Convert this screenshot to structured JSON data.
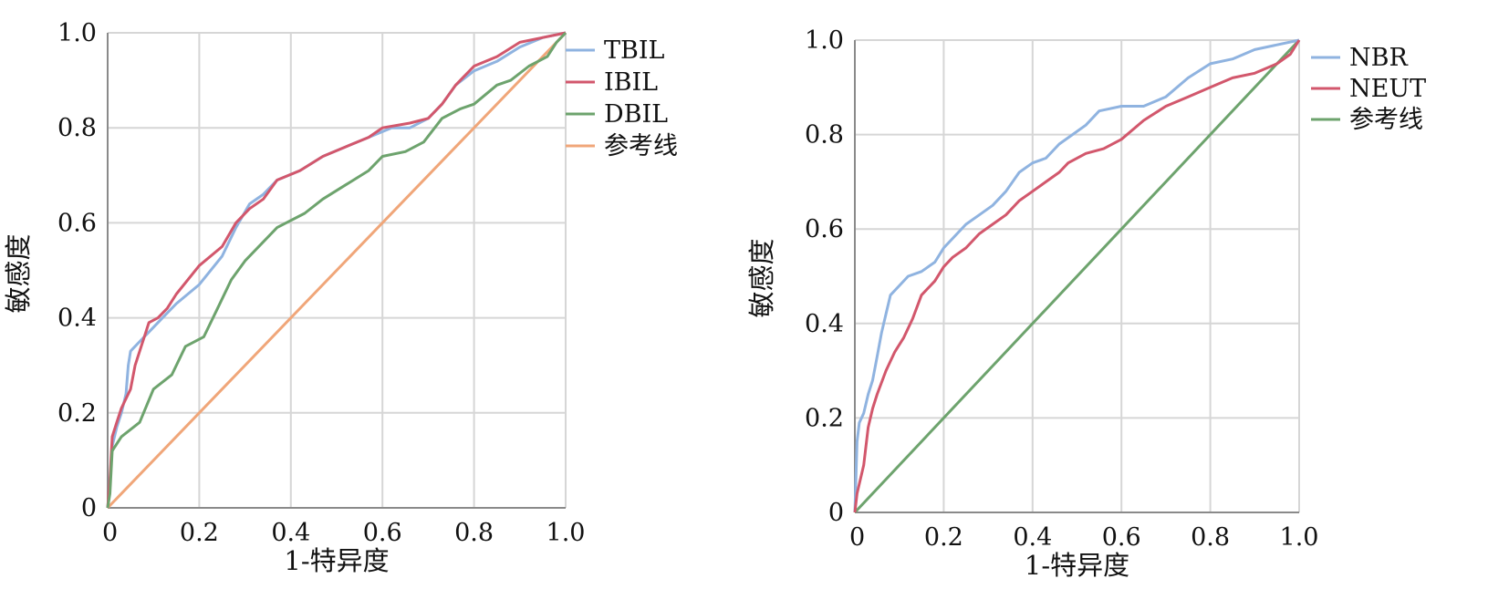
{
  "chart_data": [
    {
      "type": "line",
      "xlabel": "1-特异度",
      "ylabel": "敏感度",
      "xlim": [
        0,
        1
      ],
      "ylim": [
        0,
        1
      ],
      "x_ticks": [
        "0",
        "0.2",
        "0.4",
        "0.6",
        "0.8",
        "1.0"
      ],
      "y_ticks": [
        "0",
        "0.2",
        "0.4",
        "0.6",
        "0.8",
        "1.0"
      ],
      "grid": true,
      "legend_position": "right",
      "series": [
        {
          "name": "TBIL",
          "color": "#8fb3e0",
          "points": [
            [
              0,
              0
            ],
            [
              0.005,
              0.05
            ],
            [
              0.01,
              0.13
            ],
            [
              0.02,
              0.17
            ],
            [
              0.03,
              0.2
            ],
            [
              0.04,
              0.24
            ],
            [
              0.045,
              0.3
            ],
            [
              0.05,
              0.33
            ],
            [
              0.07,
              0.35
            ],
            [
              0.09,
              0.37
            ],
            [
              0.12,
              0.4
            ],
            [
              0.15,
              0.43
            ],
            [
              0.2,
              0.47
            ],
            [
              0.25,
              0.53
            ],
            [
              0.28,
              0.59
            ],
            [
              0.31,
              0.64
            ],
            [
              0.34,
              0.66
            ],
            [
              0.37,
              0.69
            ],
            [
              0.42,
              0.71
            ],
            [
              0.47,
              0.74
            ],
            [
              0.52,
              0.76
            ],
            [
              0.57,
              0.78
            ],
            [
              0.62,
              0.8
            ],
            [
              0.66,
              0.8
            ],
            [
              0.7,
              0.82
            ],
            [
              0.73,
              0.85
            ],
            [
              0.76,
              0.89
            ],
            [
              0.8,
              0.92
            ],
            [
              0.85,
              0.94
            ],
            [
              0.9,
              0.97
            ],
            [
              0.95,
              0.99
            ],
            [
              1,
              1
            ]
          ]
        },
        {
          "name": "IBIL",
          "color": "#d2576c",
          "points": [
            [
              0,
              0
            ],
            [
              0.005,
              0.06
            ],
            [
              0.01,
              0.15
            ],
            [
              0.02,
              0.18
            ],
            [
              0.03,
              0.21
            ],
            [
              0.05,
              0.25
            ],
            [
              0.06,
              0.3
            ],
            [
              0.08,
              0.36
            ],
            [
              0.09,
              0.39
            ],
            [
              0.11,
              0.4
            ],
            [
              0.13,
              0.42
            ],
            [
              0.15,
              0.45
            ],
            [
              0.2,
              0.51
            ],
            [
              0.25,
              0.55
            ],
            [
              0.28,
              0.6
            ],
            [
              0.31,
              0.63
            ],
            [
              0.34,
              0.65
            ],
            [
              0.37,
              0.69
            ],
            [
              0.42,
              0.71
            ],
            [
              0.47,
              0.74
            ],
            [
              0.52,
              0.76
            ],
            [
              0.57,
              0.78
            ],
            [
              0.6,
              0.8
            ],
            [
              0.66,
              0.81
            ],
            [
              0.7,
              0.82
            ],
            [
              0.73,
              0.85
            ],
            [
              0.76,
              0.89
            ],
            [
              0.8,
              0.93
            ],
            [
              0.85,
              0.95
            ],
            [
              0.9,
              0.98
            ],
            [
              0.95,
              0.99
            ],
            [
              1,
              1
            ]
          ]
        },
        {
          "name": "DBIL",
          "color": "#6da36d",
          "points": [
            [
              0,
              0
            ],
            [
              0.005,
              0.03
            ],
            [
              0.01,
              0.12
            ],
            [
              0.03,
              0.15
            ],
            [
              0.07,
              0.18
            ],
            [
              0.1,
              0.25
            ],
            [
              0.14,
              0.28
            ],
            [
              0.17,
              0.34
            ],
            [
              0.21,
              0.36
            ],
            [
              0.24,
              0.42
            ],
            [
              0.27,
              0.48
            ],
            [
              0.3,
              0.52
            ],
            [
              0.37,
              0.59
            ],
            [
              0.43,
              0.62
            ],
            [
              0.47,
              0.65
            ],
            [
              0.52,
              0.68
            ],
            [
              0.57,
              0.71
            ],
            [
              0.6,
              0.74
            ],
            [
              0.65,
              0.75
            ],
            [
              0.69,
              0.77
            ],
            [
              0.73,
              0.82
            ],
            [
              0.77,
              0.84
            ],
            [
              0.8,
              0.85
            ],
            [
              0.85,
              0.89
            ],
            [
              0.88,
              0.9
            ],
            [
              0.92,
              0.93
            ],
            [
              0.96,
              0.95
            ],
            [
              0.98,
              0.98
            ],
            [
              1,
              1
            ]
          ]
        },
        {
          "name": "参考线",
          "color": "#f0a679",
          "points": [
            [
              0,
              0
            ],
            [
              1,
              1
            ]
          ]
        }
      ]
    },
    {
      "type": "line",
      "xlabel": "1-特异度",
      "ylabel": "敏感度",
      "xlim": [
        0,
        1
      ],
      "ylim": [
        0,
        1
      ],
      "x_ticks": [
        "0",
        "0.2",
        "0.4",
        "0.6",
        "0.8",
        "1.0"
      ],
      "y_ticks": [
        "0",
        "0.2",
        "0.4",
        "0.6",
        "0.8",
        "1.0"
      ],
      "grid": true,
      "legend_position": "right",
      "series": [
        {
          "name": "NBR",
          "color": "#8fb3e0",
          "points": [
            [
              0,
              0
            ],
            [
              0.005,
              0.15
            ],
            [
              0.01,
              0.19
            ],
            [
              0.02,
              0.21
            ],
            [
              0.03,
              0.25
            ],
            [
              0.04,
              0.28
            ],
            [
              0.05,
              0.33
            ],
            [
              0.06,
              0.38
            ],
            [
              0.07,
              0.42
            ],
            [
              0.08,
              0.46
            ],
            [
              0.1,
              0.48
            ],
            [
              0.12,
              0.5
            ],
            [
              0.15,
              0.51
            ],
            [
              0.18,
              0.53
            ],
            [
              0.2,
              0.56
            ],
            [
              0.22,
              0.58
            ],
            [
              0.25,
              0.61
            ],
            [
              0.28,
              0.63
            ],
            [
              0.31,
              0.65
            ],
            [
              0.34,
              0.68
            ],
            [
              0.37,
              0.72
            ],
            [
              0.4,
              0.74
            ],
            [
              0.43,
              0.75
            ],
            [
              0.46,
              0.78
            ],
            [
              0.49,
              0.8
            ],
            [
              0.52,
              0.82
            ],
            [
              0.55,
              0.85
            ],
            [
              0.6,
              0.86
            ],
            [
              0.65,
              0.86
            ],
            [
              0.7,
              0.88
            ],
            [
              0.75,
              0.92
            ],
            [
              0.8,
              0.95
            ],
            [
              0.85,
              0.96
            ],
            [
              0.9,
              0.98
            ],
            [
              0.95,
              0.99
            ],
            [
              1,
              1
            ]
          ]
        },
        {
          "name": "NEUT",
          "color": "#d2576c",
          "points": [
            [
              0,
              0
            ],
            [
              0.005,
              0.04
            ],
            [
              0.02,
              0.1
            ],
            [
              0.03,
              0.18
            ],
            [
              0.04,
              0.22
            ],
            [
              0.05,
              0.25
            ],
            [
              0.07,
              0.3
            ],
            [
              0.09,
              0.34
            ],
            [
              0.11,
              0.37
            ],
            [
              0.13,
              0.41
            ],
            [
              0.15,
              0.46
            ],
            [
              0.18,
              0.49
            ],
            [
              0.2,
              0.52
            ],
            [
              0.22,
              0.54
            ],
            [
              0.25,
              0.56
            ],
            [
              0.28,
              0.59
            ],
            [
              0.31,
              0.61
            ],
            [
              0.34,
              0.63
            ],
            [
              0.37,
              0.66
            ],
            [
              0.4,
              0.68
            ],
            [
              0.43,
              0.7
            ],
            [
              0.46,
              0.72
            ],
            [
              0.48,
              0.74
            ],
            [
              0.52,
              0.76
            ],
            [
              0.56,
              0.77
            ],
            [
              0.6,
              0.79
            ],
            [
              0.65,
              0.83
            ],
            [
              0.7,
              0.86
            ],
            [
              0.75,
              0.88
            ],
            [
              0.8,
              0.9
            ],
            [
              0.85,
              0.92
            ],
            [
              0.9,
              0.93
            ],
            [
              0.95,
              0.95
            ],
            [
              0.98,
              0.97
            ],
            [
              1,
              1
            ]
          ]
        },
        {
          "name": "参考线",
          "color": "#6da36d",
          "points": [
            [
              0,
              0
            ],
            [
              1,
              1
            ]
          ]
        }
      ]
    }
  ]
}
